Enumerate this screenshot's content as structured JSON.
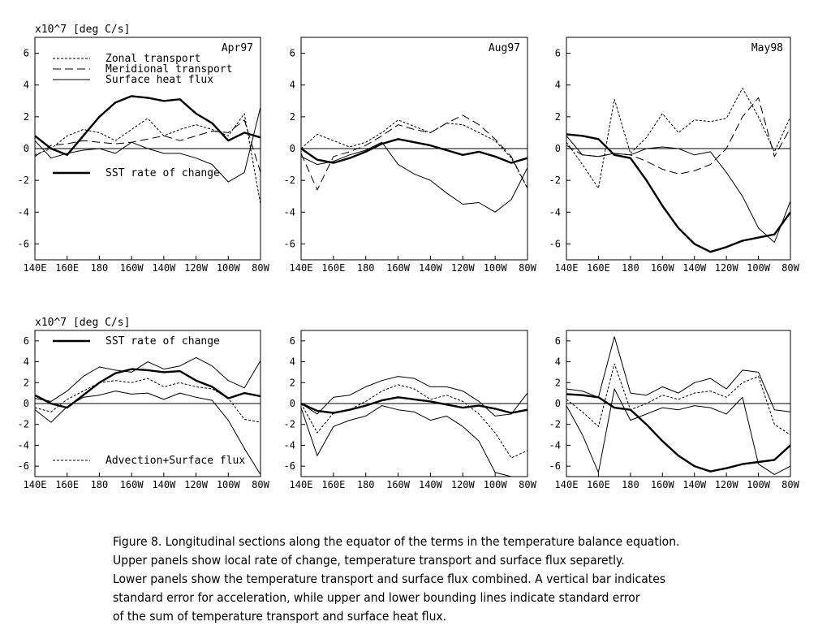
{
  "figure": {
    "y_unit_label": "x10^7 [deg C/s]",
    "x_ticks": [
      "140E",
      "160E",
      "180",
      "160W",
      "140W",
      "120W",
      "100W",
      "80W"
    ],
    "y_ticks": [
      "6",
      "4",
      "2",
      "0",
      "-2",
      "-4",
      "-6"
    ]
  },
  "chart_data": [
    {
      "type": "line",
      "panel": "upper-left",
      "title": "Apr97",
      "ylabel": "x10^7 [deg C/s]",
      "x": [
        "140E",
        "150E",
        "160E",
        "170E",
        "180",
        "170W",
        "160W",
        "150W",
        "140W",
        "130W",
        "120W",
        "110W",
        "100W",
        "90W",
        "80W"
      ],
      "xlim": [
        140,
        280
      ],
      "ylim": [
        -7,
        7
      ],
      "legend": [
        "Zonal transport",
        "Meridional transport",
        "Surface heat flux",
        "SST rate of change"
      ],
      "series": [
        {
          "name": "Zonal transport",
          "style": "dotted",
          "values": [
            -0.4,
            0.0,
            0.8,
            1.2,
            1.0,
            0.5,
            1.2,
            1.9,
            0.8,
            1.2,
            1.5,
            1.2,
            0.8,
            2.2,
            -3.5
          ]
        },
        {
          "name": "Meridional transport",
          "style": "dashed",
          "values": [
            -0.5,
            0.2,
            0.3,
            0.5,
            0.4,
            0.3,
            0.4,
            0.6,
            0.8,
            0.5,
            0.8,
            1.1,
            1.0,
            1.8,
            -1.5
          ]
        },
        {
          "name": "Surface heat flux",
          "style": "thin",
          "values": [
            0.5,
            -0.6,
            -0.3,
            -0.1,
            0.0,
            -0.3,
            0.4,
            0.0,
            -0.3,
            -0.3,
            -0.6,
            -1.0,
            -2.1,
            -1.5,
            2.6
          ]
        },
        {
          "name": "SST rate of change",
          "style": "thick",
          "values": [
            0.8,
            0.0,
            -0.4,
            0.8,
            2.0,
            2.9,
            3.3,
            3.2,
            3.0,
            3.1,
            2.2,
            1.6,
            0.5,
            1.0,
            0.7
          ]
        }
      ]
    },
    {
      "type": "line",
      "panel": "upper-middle",
      "title": "Aug97",
      "x": [
        "140E",
        "150E",
        "160E",
        "170E",
        "180",
        "170W",
        "160W",
        "150W",
        "140W",
        "130W",
        "120W",
        "110W",
        "100W",
        "90W",
        "80W"
      ],
      "xlim": [
        140,
        280
      ],
      "ylim": [
        -7,
        7
      ],
      "series": [
        {
          "name": "Zonal transport",
          "style": "dotted",
          "values": [
            0.0,
            0.9,
            0.5,
            0.1,
            0.4,
            1.0,
            1.8,
            1.4,
            1.0,
            1.6,
            1.5,
            1.0,
            0.5,
            -0.6,
            -2.5
          ]
        },
        {
          "name": "Meridional transport",
          "style": "dashed",
          "values": [
            -0.3,
            -2.6,
            -0.5,
            -0.2,
            0.2,
            0.8,
            1.5,
            1.2,
            1.0,
            1.6,
            2.1,
            1.5,
            0.6,
            -0.5,
            -2.5
          ]
        },
        {
          "name": "Surface heat flux",
          "style": "thin",
          "values": [
            -0.5,
            -1.0,
            -0.8,
            -0.4,
            -0.1,
            0.4,
            -1.0,
            -1.6,
            -2.0,
            -2.8,
            -3.5,
            -3.4,
            -4.0,
            -3.2,
            -1.2
          ]
        },
        {
          "name": "SST rate of change",
          "style": "thick",
          "values": [
            0.0,
            -0.7,
            -0.9,
            -0.6,
            -0.2,
            0.3,
            0.6,
            0.4,
            0.2,
            -0.1,
            -0.4,
            -0.2,
            -0.5,
            -0.9,
            -0.6
          ]
        }
      ]
    },
    {
      "type": "line",
      "panel": "upper-right",
      "title": "May98",
      "x": [
        "140E",
        "150E",
        "160E",
        "170E",
        "180",
        "170W",
        "160W",
        "150W",
        "140W",
        "130W",
        "120W",
        "110W",
        "100W",
        "90W",
        "80W"
      ],
      "xlim": [
        140,
        280
      ],
      "ylim": [
        -7,
        7
      ],
      "series": [
        {
          "name": "Zonal transport",
          "style": "dotted",
          "values": [
            0.4,
            -1.0,
            -2.5,
            3.1,
            -0.3,
            0.7,
            2.2,
            1.0,
            1.8,
            1.7,
            1.9,
            3.8,
            2.0,
            -0.2,
            2.0
          ]
        },
        {
          "name": "Meridional transport",
          "style": "dashed",
          "values": [
            0.2,
            -0.4,
            -0.5,
            -0.3,
            -0.4,
            -0.8,
            -1.3,
            -1.6,
            -1.4,
            -1.0,
            0.0,
            2.0,
            3.2,
            -0.5,
            1.3
          ]
        },
        {
          "name": "Surface heat flux",
          "style": "thin",
          "values": [
            0.8,
            -0.4,
            -0.5,
            -0.3,
            -0.4,
            0.0,
            0.1,
            0.0,
            -0.4,
            -0.2,
            -1.5,
            -3.0,
            -5.0,
            -5.9,
            -3.3
          ]
        },
        {
          "name": "SST rate of change",
          "style": "thick",
          "values": [
            0.9,
            0.8,
            0.6,
            -0.4,
            -0.6,
            -2.0,
            -3.6,
            -5.0,
            -6.0,
            -6.5,
            -6.2,
            -5.8,
            -5.6,
            -5.4,
            -4.0
          ]
        }
      ]
    },
    {
      "type": "line",
      "panel": "lower-left",
      "title": "",
      "ylabel": "x10^7 [deg C/s]",
      "x": [
        "140E",
        "150E",
        "160E",
        "170E",
        "180",
        "170W",
        "160W",
        "150W",
        "140W",
        "130W",
        "120W",
        "110W",
        "100W",
        "90W",
        "80W"
      ],
      "xlim": [
        140,
        280
      ],
      "ylim": [
        -7,
        7
      ],
      "legend": [
        "SST rate of change",
        "Advection+Surface flux"
      ],
      "series": [
        {
          "name": "SST rate of change",
          "style": "thick",
          "values": [
            0.8,
            0.0,
            -0.4,
            0.8,
            2.0,
            2.9,
            3.3,
            3.2,
            3.0,
            3.1,
            2.2,
            1.6,
            0.5,
            1.0,
            0.7
          ]
        },
        {
          "name": "Advection+Surface flux",
          "style": "dotted",
          "values": [
            -0.4,
            -0.8,
            0.4,
            1.2,
            2.0,
            2.2,
            2.0,
            2.4,
            1.6,
            2.0,
            1.6,
            1.4,
            0.5,
            -1.5,
            -1.8
          ]
        },
        {
          "name": "upper bound",
          "style": "thin",
          "values": [
            0.5,
            0.2,
            1.2,
            2.6,
            3.5,
            3.2,
            3.0,
            4.0,
            3.3,
            3.6,
            4.4,
            3.6,
            2.2,
            1.5,
            4.1
          ]
        },
        {
          "name": "lower bound",
          "style": "thin",
          "values": [
            -0.6,
            -1.8,
            -0.3,
            0.6,
            0.8,
            1.2,
            0.9,
            1.0,
            0.4,
            1.0,
            0.6,
            0.3,
            -1.6,
            -4.3,
            -6.8
          ]
        }
      ]
    },
    {
      "type": "line",
      "panel": "lower-middle",
      "title": "",
      "x": [
        "140E",
        "150E",
        "160E",
        "170E",
        "180",
        "170W",
        "160W",
        "150W",
        "140W",
        "130W",
        "120W",
        "110W",
        "100W",
        "90W",
        "80W"
      ],
      "xlim": [
        140,
        280
      ],
      "ylim": [
        -7,
        7
      ],
      "series": [
        {
          "name": "SST rate of change",
          "style": "thick",
          "values": [
            0.0,
            -0.7,
            -0.9,
            -0.6,
            -0.2,
            0.3,
            0.6,
            0.4,
            0.2,
            -0.1,
            -0.4,
            -0.2,
            -0.5,
            -0.9,
            -0.6
          ]
        },
        {
          "name": "Advection+Surface flux",
          "style": "dotted",
          "values": [
            0.0,
            -2.8,
            -0.9,
            -0.6,
            0.2,
            1.2,
            1.8,
            1.4,
            0.4,
            0.8,
            0.2,
            -1.0,
            -2.8,
            -5.2,
            -4.5
          ]
        },
        {
          "name": "upper bound",
          "style": "thin",
          "values": [
            0.0,
            -1.0,
            0.6,
            0.8,
            1.6,
            2.2,
            2.6,
            2.4,
            1.6,
            1.6,
            1.2,
            0.2,
            -1.2,
            -1.0,
            1.0
          ]
        },
        {
          "name": "lower bound",
          "style": "thin",
          "values": [
            -0.4,
            -5.0,
            -2.2,
            -1.6,
            -1.2,
            -0.2,
            -0.6,
            -0.8,
            -1.6,
            -1.2,
            -2.2,
            -3.6,
            -6.6,
            -7.0,
            -7.0
          ]
        }
      ]
    },
    {
      "type": "line",
      "panel": "lower-right",
      "title": "",
      "x": [
        "140E",
        "150E",
        "160E",
        "170E",
        "180",
        "170W",
        "160W",
        "150W",
        "140W",
        "130W",
        "120W",
        "110W",
        "100W",
        "90W",
        "80W"
      ],
      "xlim": [
        140,
        280
      ],
      "ylim": [
        -7,
        7
      ],
      "series": [
        {
          "name": "SST rate of change",
          "style": "thick",
          "values": [
            0.9,
            0.8,
            0.6,
            -0.4,
            -0.6,
            -2.0,
            -3.6,
            -5.0,
            -6.0,
            -6.5,
            -6.2,
            -5.8,
            -5.6,
            -5.4,
            -4.0
          ]
        },
        {
          "name": "Advection+Surface flux",
          "style": "dotted",
          "values": [
            0.4,
            -0.8,
            -2.2,
            3.8,
            -0.6,
            0.0,
            0.8,
            0.4,
            1.0,
            1.2,
            0.6,
            2.0,
            2.6,
            -2.0,
            -3.0
          ]
        },
        {
          "name": "upper bound",
          "style": "thin",
          "values": [
            1.4,
            1.2,
            0.6,
            6.4,
            1.0,
            0.8,
            1.6,
            1.0,
            2.0,
            2.4,
            1.4,
            3.2,
            3.0,
            -0.6,
            -0.8
          ]
        },
        {
          "name": "lower bound",
          "style": "thin",
          "values": [
            -0.2,
            -3.0,
            -6.6,
            1.4,
            -1.6,
            -1.0,
            -0.4,
            -0.6,
            -0.2,
            -0.4,
            -1.0,
            0.6,
            -5.8,
            -6.8,
            -6.0
          ]
        }
      ]
    }
  ],
  "caption": {
    "lines": [
      "Figure 8. Longitudinal sections along the equator of the terms in the temperature balance equation.",
      "Upper panels show local rate of change, temperature transport and surface flux separetly.",
      "Lower panels show the temperature transport and surface flux combined. A vertical bar indicates",
      "standard error for acceleration, while upper and lower bounding lines indicate standard error",
      "of the sum of temperature transport and surface heat flux."
    ]
  }
}
